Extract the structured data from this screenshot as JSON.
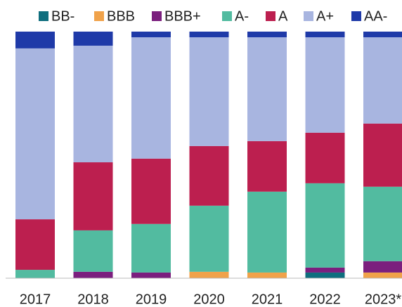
{
  "chart_data": {
    "type": "stacked_bar",
    "categories": [
      "2017",
      "2018",
      "2019",
      "2020",
      "2021",
      "2022",
      "2023*"
    ],
    "series": [
      {
        "name": "BB-",
        "color": "#0f6e7e",
        "values": [
          0,
          0,
          0,
          0,
          0,
          2.3,
          0
        ]
      },
      {
        "name": "BBB",
        "color": "#f0a24a",
        "values": [
          0,
          0,
          0,
          2.6,
          2.3,
          0,
          2.3
        ]
      },
      {
        "name": "BBB+",
        "color": "#7b1f7e",
        "values": [
          0,
          2.6,
          2.3,
          0,
          0,
          2.0,
          4.6
        ]
      },
      {
        "name": "A-",
        "color": "#52bba0",
        "values": [
          3.4,
          16.8,
          19.7,
          26.8,
          32.8,
          34.2,
          30.2
        ]
      },
      {
        "name": "A",
        "color": "#bc1f4f",
        "values": [
          20.5,
          27.6,
          26.5,
          24.2,
          20.5,
          20.5,
          25.6
        ]
      },
      {
        "name": "A+",
        "color": "#a8b5e0",
        "values": [
          69.3,
          47.3,
          49.2,
          44.1,
          42.1,
          38.7,
          35.0
        ]
      },
      {
        "name": "AA-",
        "color": "#1f3aa8",
        "values": [
          6.8,
          5.7,
          2.3,
          2.3,
          2.3,
          2.3,
          2.3
        ]
      }
    ],
    "ylim": [
      0,
      100
    ]
  }
}
